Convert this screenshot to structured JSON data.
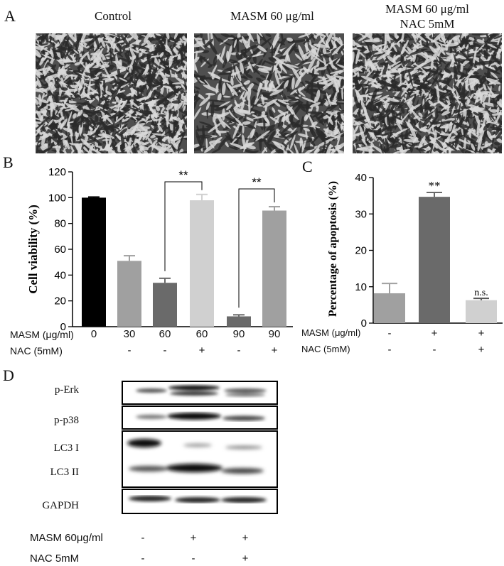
{
  "panels": {
    "a": "A",
    "b": "B",
    "c": "C",
    "d": "D"
  },
  "panel_a": {
    "images": [
      {
        "title_line1": "Control",
        "title_line2": ""
      },
      {
        "title_line1": "MASM 60 μg/ml",
        "title_line2": ""
      },
      {
        "title_line1": "MASM 60 μg/ml",
        "title_line2": "NAC 5mM"
      }
    ]
  },
  "chart_data": [
    {
      "type": "bar",
      "panel": "B",
      "ylabel": "Cell viability (%)",
      "ylim": [
        0,
        120
      ],
      "yticks": [
        "0",
        "20",
        "40",
        "60",
        "80",
        "100",
        "120"
      ],
      "values": [
        100,
        51,
        34,
        98,
        8,
        90
      ],
      "errors": [
        0.5,
        4,
        3.5,
        4.5,
        1.2,
        3
      ],
      "colors": [
        "#000000",
        "#a0a0a0",
        "#6a6a6a",
        "#d0d0d0",
        "#6a6a6a",
        "#a0a0a0"
      ],
      "significance": [
        "**",
        "**"
      ],
      "rows": [
        {
          "label": "MASM (μg/ml)",
          "values": [
            "0",
            "30",
            "60",
            "60",
            "90",
            "90"
          ]
        },
        {
          "label": "NAC (5mM)",
          "values": [
            "",
            "-",
            "-",
            "+",
            "-",
            "+"
          ]
        }
      ]
    },
    {
      "type": "bar",
      "panel": "C",
      "ylabel": "Percentage of apoptosis (%)",
      "ylim": [
        0,
        40
      ],
      "yticks": [
        "0",
        "10",
        "20",
        "30",
        "40"
      ],
      "values": [
        8.2,
        34.7,
        6.3
      ],
      "errors": [
        2.7,
        1.2,
        0.5
      ],
      "colors": [
        "#a0a0a0",
        "#6a6a6a",
        "#d0d0d0"
      ],
      "annotations": [
        "",
        "**",
        "n.s."
      ],
      "rows": [
        {
          "label": "MASM (μg/ml)",
          "values": [
            "-",
            "+",
            "+"
          ]
        },
        {
          "label": "NAC (5mM)",
          "values": [
            "-",
            "-",
            "+"
          ]
        }
      ]
    }
  ],
  "panel_d": {
    "blots": [
      "p-Erk",
      "p-p38",
      "LC3 I",
      "LC3 II",
      "GAPDH"
    ],
    "rows": [
      {
        "label": "MASM 60μg/ml",
        "values": [
          "-",
          "+",
          "+"
        ]
      },
      {
        "label": "NAC 5mM",
        "values": [
          "-",
          "-",
          "+"
        ]
      }
    ]
  }
}
